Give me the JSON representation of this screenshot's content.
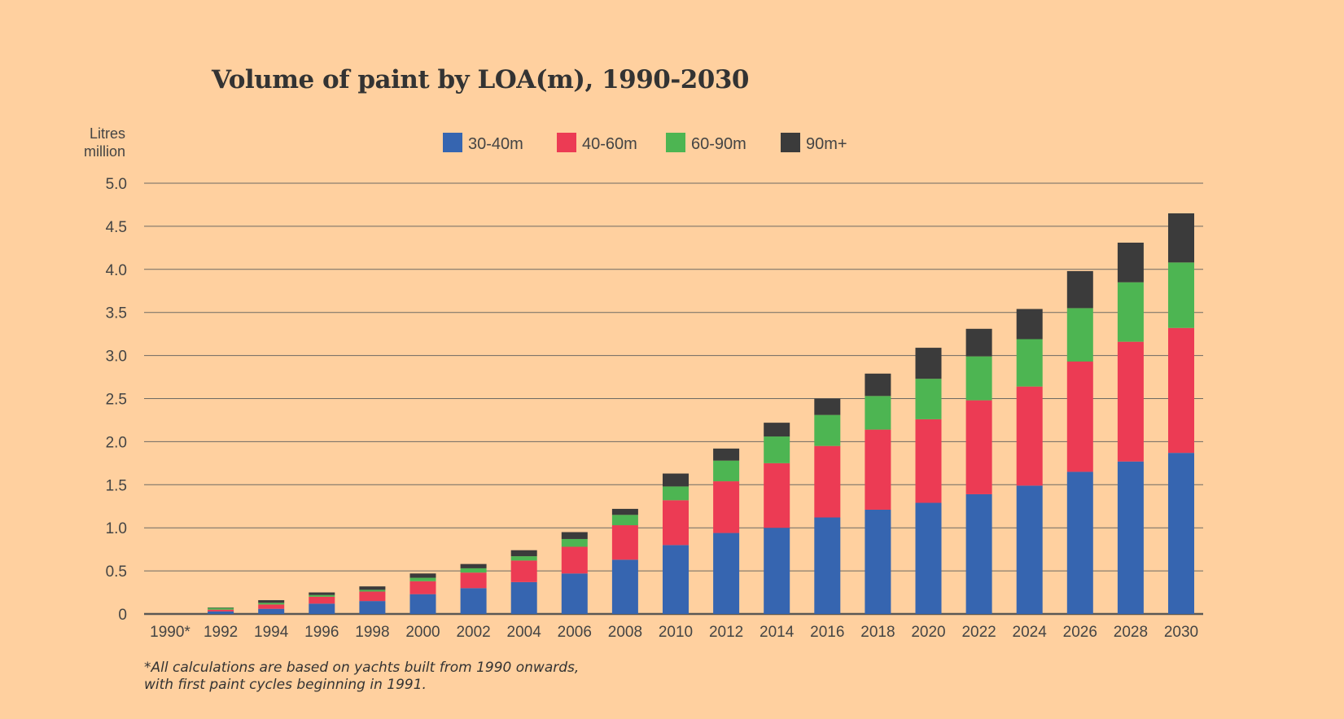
{
  "colors": {
    "background": "#FFD09F",
    "grid": "#6e6a63",
    "axis": "#5a5854",
    "30-40m": "#3665B0",
    "40-60m": "#EC3B54",
    "60-90m": "#4DB552",
    "90m+": "#3B3B3B"
  },
  "footnote": {
    "line1": "*All calculations are based on yachts built from 1990 onwards,",
    "line2": "with first paint cycles beginning in 1991."
  },
  "chart_data": {
    "type": "bar",
    "stacked": true,
    "title": "Volume of paint by LOA(m), 1990-2030",
    "ylabel_line1": "Litres",
    "ylabel_line2": "million",
    "xlabel": "",
    "ylim": [
      0,
      5.0
    ],
    "yticks": [
      0,
      0.5,
      1.0,
      1.5,
      2.0,
      2.5,
      3.0,
      3.5,
      4.0,
      4.5,
      5.0
    ],
    "ytick_labels": [
      "0",
      "0.5",
      "1.0",
      "1.5",
      "2.0",
      "2.5",
      "3.0",
      "3.5",
      "4.0",
      "4.5",
      "5.0"
    ],
    "grid": true,
    "legend_position": "top",
    "categories": [
      "1990*",
      "1992",
      "1994",
      "1996",
      "1998",
      "2000",
      "2002",
      "2004",
      "2006",
      "2008",
      "2010",
      "2012",
      "2014",
      "2016",
      "2018",
      "2020",
      "2022",
      "2024",
      "2026",
      "2028",
      "2030"
    ],
    "series": [
      {
        "name": "30-40m",
        "values": [
          0,
          0.03,
          0.06,
          0.12,
          0.15,
          0.23,
          0.3,
          0.37,
          0.47,
          0.63,
          0.8,
          0.94,
          1.0,
          1.12,
          1.21,
          1.29,
          1.39,
          1.49,
          1.65,
          1.77,
          1.87
        ]
      },
      {
        "name": "40-60m",
        "values": [
          0,
          0.02,
          0.05,
          0.08,
          0.11,
          0.15,
          0.18,
          0.25,
          0.31,
          0.4,
          0.52,
          0.6,
          0.75,
          0.83,
          0.93,
          0.97,
          1.09,
          1.15,
          1.28,
          1.39,
          1.45
        ]
      },
      {
        "name": "60-90m",
        "values": [
          0,
          0.02,
          0.02,
          0.02,
          0.02,
          0.04,
          0.05,
          0.05,
          0.09,
          0.12,
          0.16,
          0.24,
          0.31,
          0.36,
          0.39,
          0.47,
          0.51,
          0.55,
          0.62,
          0.69,
          0.76
        ]
      },
      {
        "name": "90m+",
        "values": [
          0,
          0.005,
          0.03,
          0.03,
          0.04,
          0.05,
          0.05,
          0.07,
          0.08,
          0.07,
          0.15,
          0.14,
          0.16,
          0.19,
          0.26,
          0.36,
          0.32,
          0.35,
          0.43,
          0.46,
          0.57
        ]
      }
    ]
  }
}
